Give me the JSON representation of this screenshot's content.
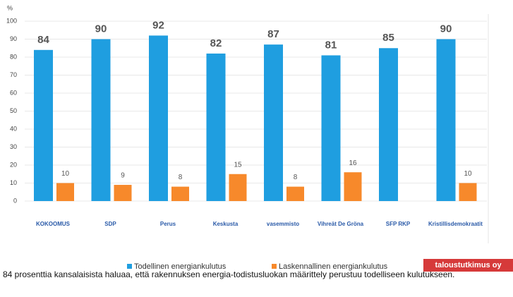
{
  "chart_data": {
    "type": "bar",
    "y_label": "%",
    "categories": [
      "KOKOOMUS",
      "SDP",
      "Perus",
      "Keskusta",
      "vasemmisto",
      "Vihreät De Gröna",
      "SFP RKP",
      "Kristillisdemokraatit"
    ],
    "series": [
      {
        "name": "Todellinen energiankulutus",
        "color": "#1f9ee0",
        "values": [
          84,
          90,
          92,
          82,
          87,
          81,
          85,
          90
        ]
      },
      {
        "name": "Laskennallinen energiankulutus",
        "color": "#f7892b",
        "values": [
          10,
          9,
          8,
          15,
          8,
          16,
          null,
          10
        ]
      }
    ],
    "ylim": [
      0,
      100
    ],
    "yticks": [
      0,
      10,
      20,
      30,
      40,
      50,
      60,
      70,
      80,
      90,
      100
    ],
    "caption": "84 prosenttia kansalaisista haluaa, että rakennuksen energia-todistusluokan määrittely perustuu todelliseen kulutukseen.",
    "badge": "taloustutkimus oy"
  }
}
